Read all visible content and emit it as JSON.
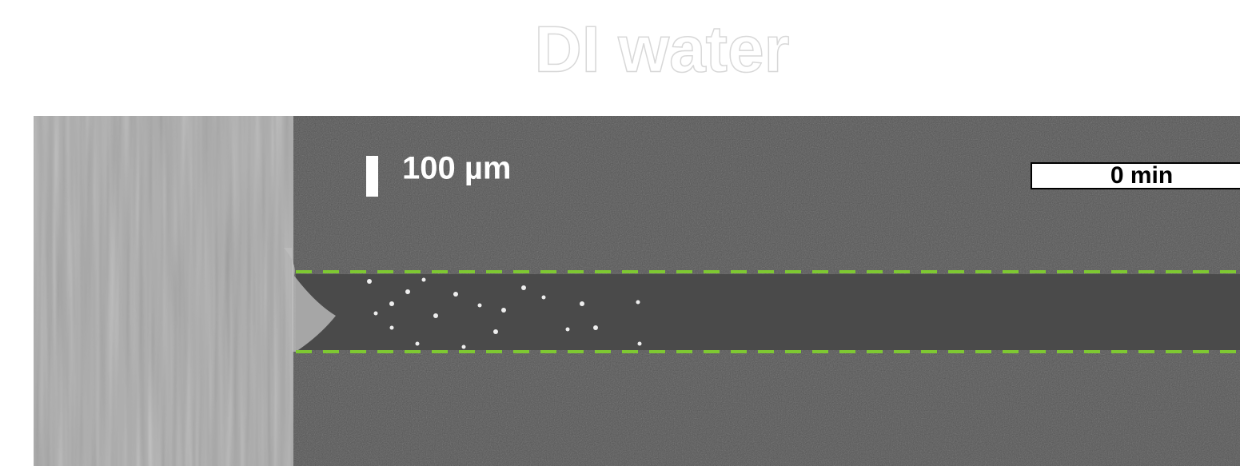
{
  "title": "DI water",
  "scale_bar": {
    "label": "100 µm"
  },
  "time_label": "0 min"
}
